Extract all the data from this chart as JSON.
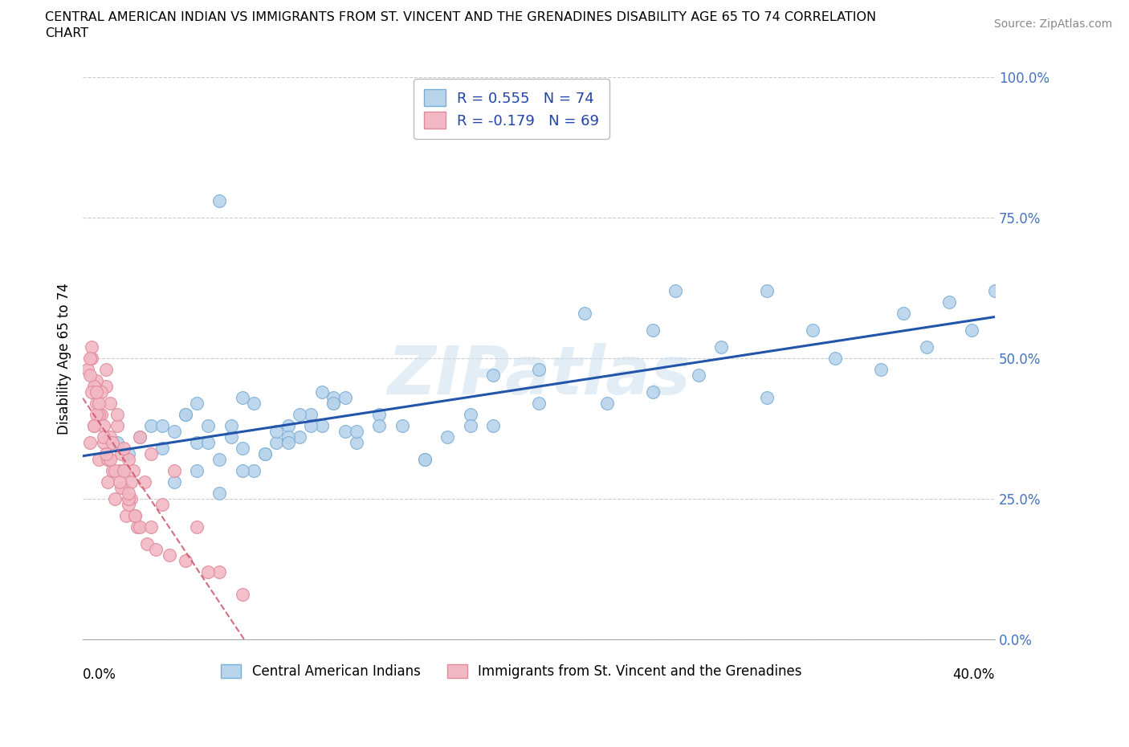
{
  "title_line1": "CENTRAL AMERICAN INDIAN VS IMMIGRANTS FROM ST. VINCENT AND THE GRENADINES DISABILITY AGE 65 TO 74 CORRELATION",
  "title_line2": "CHART",
  "source": "Source: ZipAtlas.com",
  "ylabel": "Disability Age 65 to 74",
  "y_tick_values": [
    0,
    25,
    50,
    75,
    100
  ],
  "x_tick_values": [
    0,
    5,
    10,
    15,
    20,
    25,
    30,
    35,
    40
  ],
  "xlim": [
    0,
    40
  ],
  "ylim": [
    0,
    100
  ],
  "watermark": "ZIPatlas",
  "legend_entry_1": "R = 0.555   N = 74",
  "legend_entry_2": "R = -0.179   N = 69",
  "legend_label_1": "Central American Indians",
  "legend_label_2": "Immigrants from St. Vincent and the Grenadines",
  "blue_fill": "#b8d4eb",
  "blue_edge": "#7aadd4",
  "pink_fill": "#f2b8c6",
  "pink_edge": "#e08898",
  "trend_blue": "#2255aa",
  "trend_pink": "#cc5566",
  "blue_x": [
    1.5,
    2.0,
    2.5,
    3.0,
    3.5,
    4.0,
    4.5,
    5.0,
    5.5,
    6.0,
    6.5,
    7.0,
    7.5,
    8.0,
    8.5,
    9.0,
    9.5,
    10.0,
    10.5,
    11.0,
    11.5,
    12.0,
    13.0,
    14.0,
    15.0,
    16.0,
    17.0,
    18.0,
    4.0,
    5.0,
    6.0,
    7.0,
    8.0,
    9.0,
    10.0,
    11.0,
    12.0,
    3.5,
    4.5,
    5.5,
    6.5,
    7.5,
    8.5,
    9.5,
    10.5,
    11.5,
    5.0,
    7.0,
    9.0,
    11.0,
    13.0,
    15.0,
    17.0,
    20.0,
    23.0,
    25.0,
    27.0,
    30.0,
    33.0,
    35.0,
    37.0,
    39.0,
    25.0,
    28.0,
    32.0,
    36.0,
    38.0,
    40.0,
    22.0,
    26.0,
    30.0,
    18.0,
    20.0,
    6.0
  ],
  "blue_y": [
    35,
    33,
    36,
    38,
    34,
    37,
    40,
    35,
    38,
    32,
    36,
    34,
    30,
    33,
    35,
    38,
    36,
    40,
    38,
    42,
    37,
    35,
    40,
    38,
    32,
    36,
    40,
    38,
    28,
    30,
    26,
    30,
    33,
    36,
    38,
    43,
    37,
    38,
    40,
    35,
    38,
    42,
    37,
    40,
    44,
    43,
    42,
    43,
    35,
    42,
    38,
    32,
    38,
    42,
    42,
    44,
    47,
    43,
    50,
    48,
    52,
    55,
    55,
    52,
    55,
    58,
    60,
    62,
    58,
    62,
    62,
    47,
    48,
    78
  ],
  "pink_x": [
    0.2,
    0.3,
    0.4,
    0.5,
    0.6,
    0.7,
    0.8,
    0.9,
    1.0,
    1.1,
    1.2,
    1.3,
    1.4,
    1.5,
    1.6,
    1.7,
    1.8,
    1.9,
    2.0,
    2.1,
    2.2,
    2.3,
    2.5,
    2.7,
    3.0,
    3.5,
    4.0,
    5.0,
    6.0,
    7.0,
    0.4,
    0.6,
    0.8,
    1.0,
    1.2,
    1.5,
    1.8,
    2.1,
    0.3,
    0.5,
    0.7,
    0.9,
    1.1,
    1.4,
    1.7,
    2.0,
    2.4,
    2.8,
    0.4,
    0.6,
    0.9,
    1.2,
    1.6,
    2.0,
    2.5,
    3.2,
    4.5,
    0.5,
    1.0,
    2.0,
    3.0,
    5.5,
    0.3,
    0.7,
    1.3,
    2.3,
    3.8,
    0.6,
    1.8
  ],
  "pink_y": [
    48,
    35,
    50,
    38,
    42,
    32,
    40,
    35,
    45,
    28,
    36,
    30,
    25,
    38,
    30,
    33,
    27,
    22,
    32,
    25,
    30,
    22,
    36,
    28,
    33,
    24,
    30,
    20,
    12,
    8,
    52,
    46,
    44,
    48,
    42,
    40,
    34,
    28,
    50,
    45,
    40,
    38,
    32,
    30,
    27,
    24,
    20,
    17,
    44,
    40,
    36,
    32,
    28,
    25,
    20,
    16,
    14,
    38,
    33,
    26,
    20,
    12,
    47,
    42,
    35,
    22,
    15,
    44,
    30
  ]
}
